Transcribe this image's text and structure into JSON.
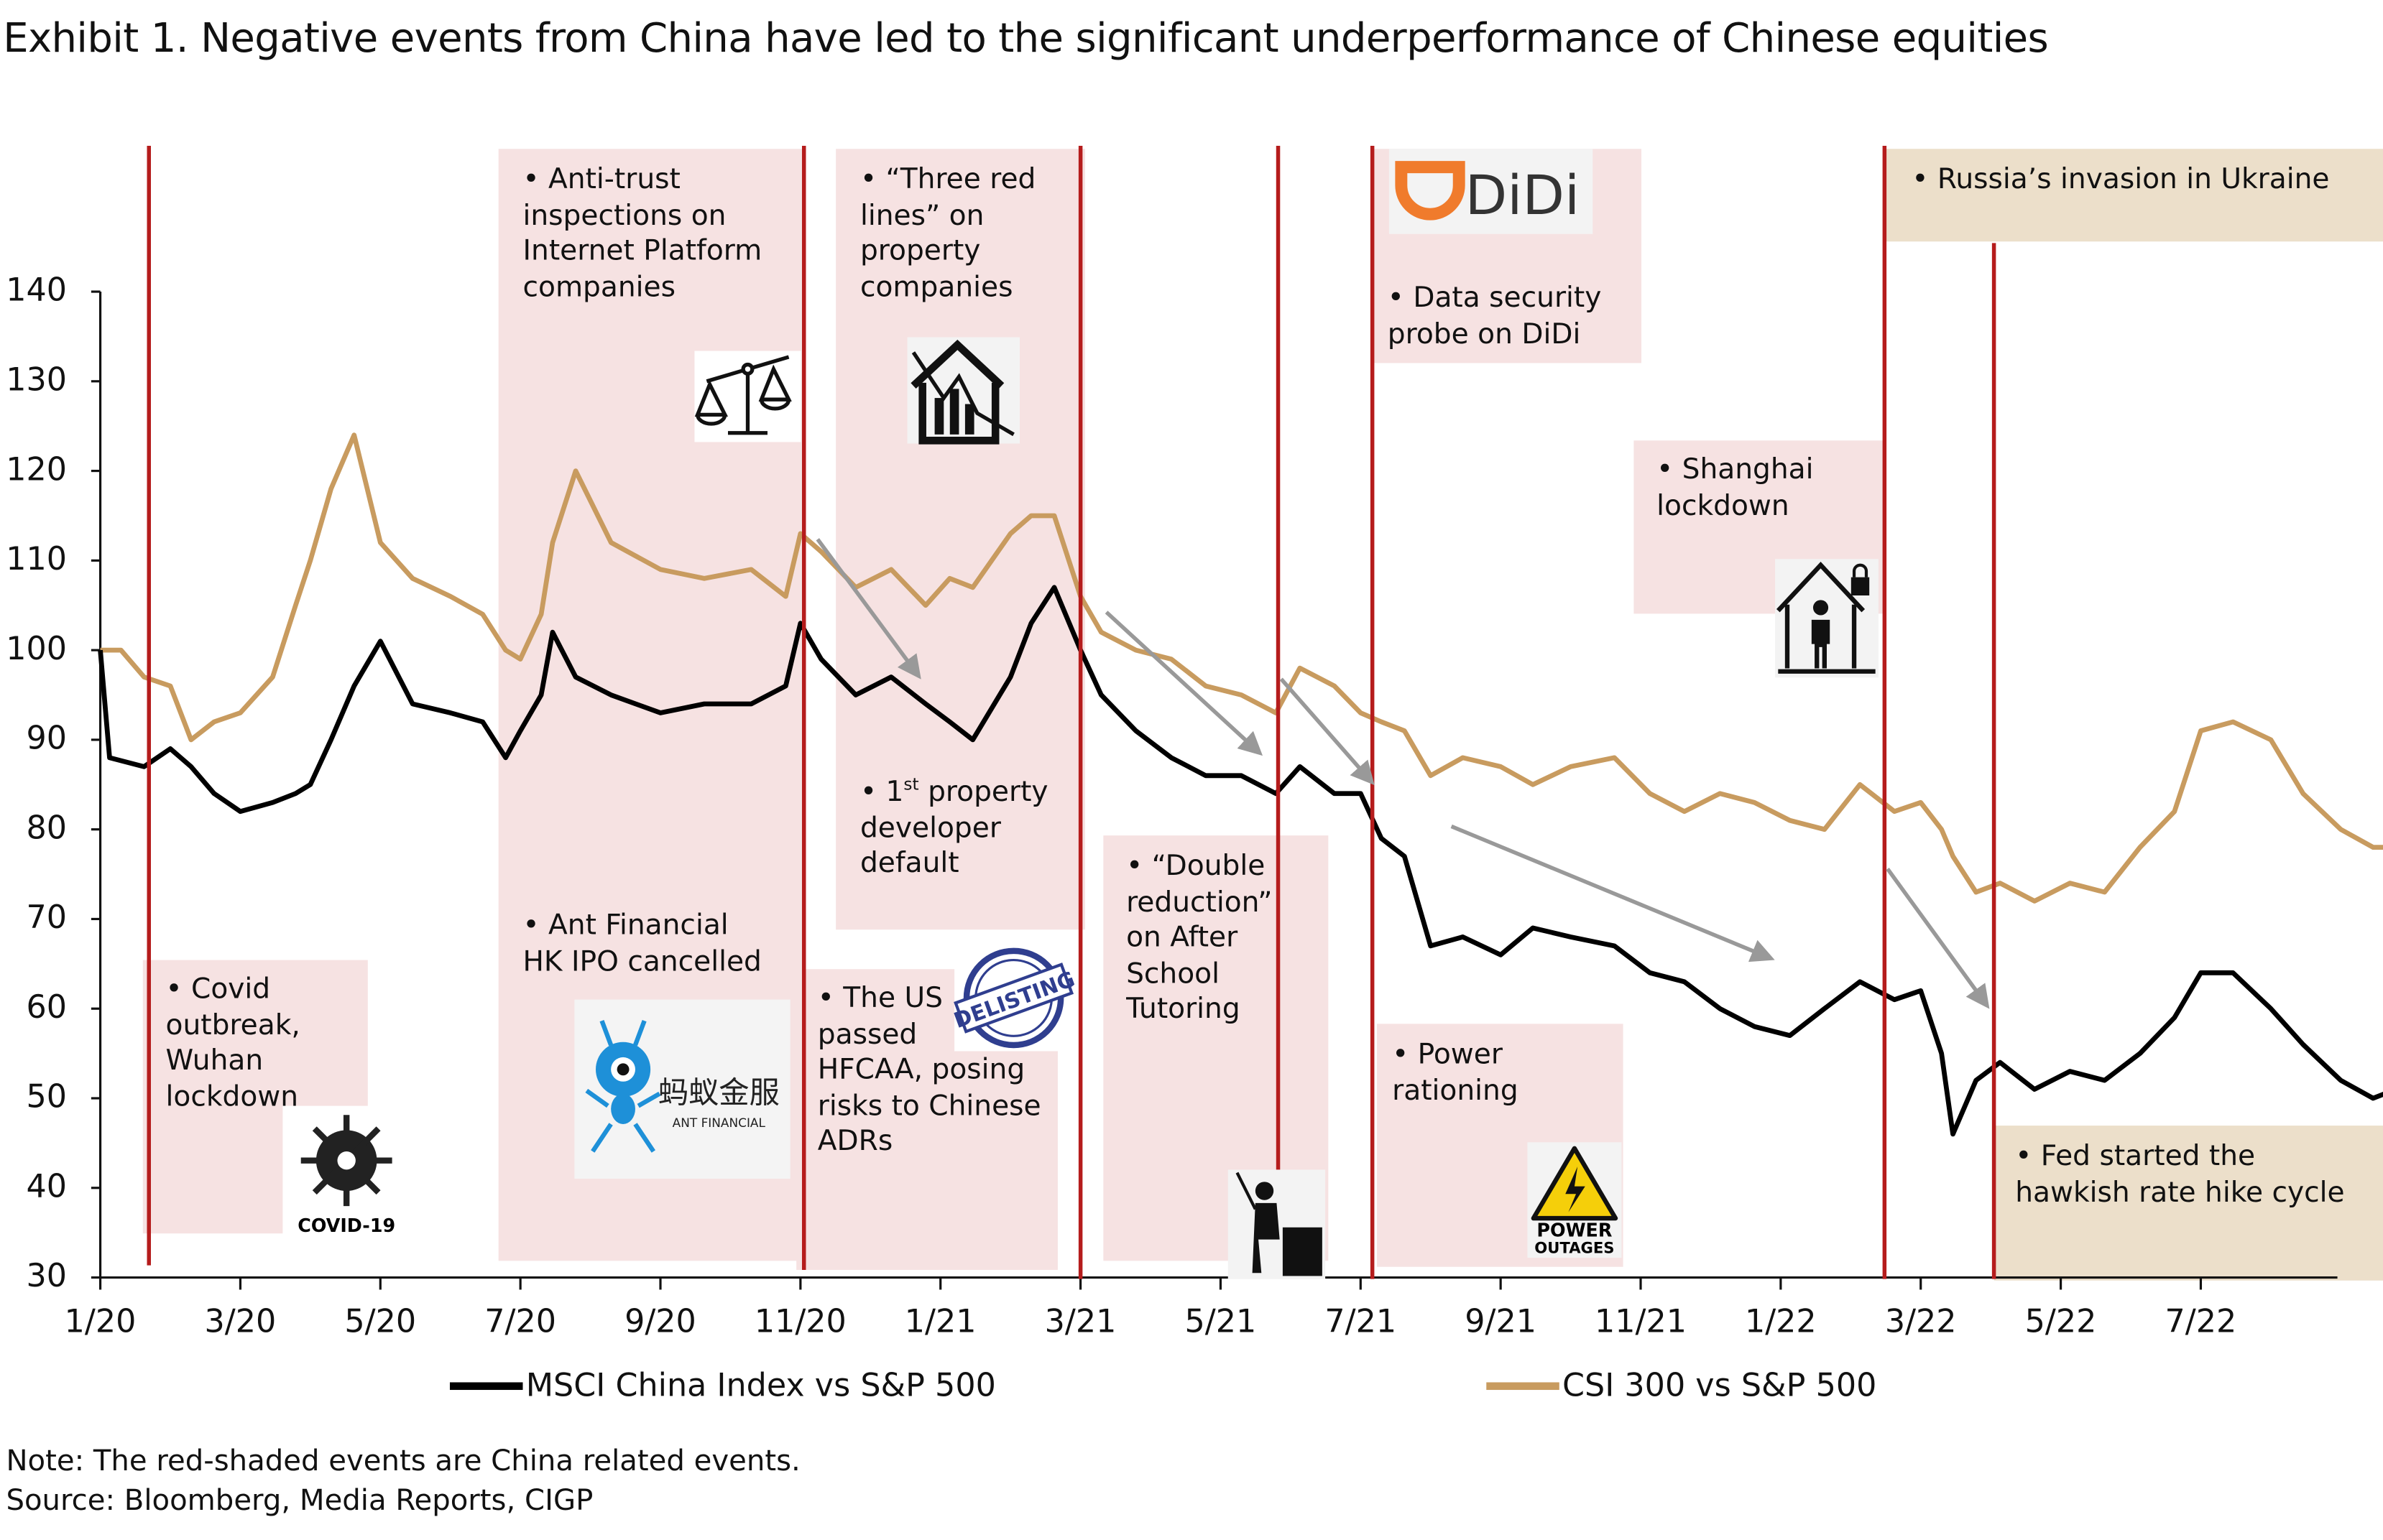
{
  "title": "Exhibit 1. Negative events from China have led to the significant underperformance of Chinese equities",
  "note": "Note: The red-shaded events are China related events.",
  "source": "Source: Bloomberg, Media Reports, CIGP",
  "colors": {
    "msci": "#000000",
    "csi": "#c89b5f",
    "event_line": "#b51c1c",
    "china_event_shade": "#f6e2e2",
    "global_event_shade": "#ecdfca",
    "arrow": "#999999"
  },
  "events": [
    {
      "text": "• Covid\noutbreak,\nWuhan\nlockdown",
      "icon": "covid-virus-icon",
      "icon_label": "COVID-19",
      "type": "china",
      "date": "2020-01-23"
    },
    {
      "text": "• Anti-trust\ninspections on\nInternet Platform\ncompanies",
      "icon": "scales-of-justice-icon",
      "type": "china",
      "date": "2020-11-03"
    },
    {
      "text": "• Ant Financial\nHK IPO cancelled",
      "icon": "ant-financial-logo",
      "icon_label": "蚂蚁金服\nANT FINANCIAL",
      "type": "china"
    },
    {
      "text": "• “Three red\nlines” on\nproperty\ncompanies",
      "icon": "house-falling-chart-icon",
      "type": "china",
      "date": "2021-03-01"
    },
    {
      "text_pre": "• 1",
      "text_sup": "st",
      "text_post": " property\ndeveloper\ndefault",
      "type": "china"
    },
    {
      "text": "• The US\npassed\nHFCAA, posing\nrisks to Chinese\nADRs",
      "icon": "delisting-stamp-icon",
      "icon_label": "DELISTING",
      "type": "china"
    },
    {
      "text": "• “Double\nreduction”\non After\nSchool\nTutoring",
      "icon": "teacher-icon",
      "type": "china",
      "date": "2021-05-25"
    },
    {
      "text": "• Data security\nprobe on DiDi",
      "icon": "didi-logo",
      "icon_label": "DiDi",
      "type": "china",
      "date": "2021-07-05"
    },
    {
      "text": "• Power\nrationing",
      "icon": "power-outage-sign-icon",
      "icon_label": "POWER\nOUTAGES",
      "type": "china"
    },
    {
      "text": "• Shanghai\nlockdown",
      "icon": "home-lockdown-icon",
      "type": "china"
    },
    {
      "text": "• Russia’s invasion in Ukraine",
      "type": "global",
      "date": "2022-02-15"
    },
    {
      "text": "• Fed started the\nhawkish rate hike cycle",
      "type": "global",
      "date": "2022-04-02"
    }
  ],
  "chart_data": {
    "type": "line",
    "title": "Exhibit 1. Negative events from China have led to the significant underperformance of Chinese equities",
    "xlabel": "",
    "ylabel": "",
    "ylim": [
      30,
      140
    ],
    "yticks": [
      140,
      130,
      120,
      110,
      100,
      90,
      80,
      70,
      60,
      50,
      40,
      30
    ],
    "xticks": [
      "1/20",
      "3/20",
      "5/20",
      "7/20",
      "9/20",
      "11/20",
      "1/21",
      "3/21",
      "5/21",
      "7/21",
      "9/21",
      "11/21",
      "1/22",
      "3/22",
      "5/22",
      "7/22"
    ],
    "xlim": [
      "2020-01-01",
      "2022-09-30"
    ],
    "grid": false,
    "legend": "bottom",
    "series": [
      {
        "name": "MSCI China Index vs S&P 500",
        "color": "#000000",
        "x": [
          "2020-01-01",
          "2020-01-05",
          "2020-01-20",
          "2020-02-01",
          "2020-02-10",
          "2020-02-20",
          "2020-03-01",
          "2020-03-15",
          "2020-03-25",
          "2020-04-01",
          "2020-04-10",
          "2020-04-20",
          "2020-05-01",
          "2020-05-15",
          "2020-06-01",
          "2020-06-15",
          "2020-06-25",
          "2020-07-01",
          "2020-07-10",
          "2020-07-15",
          "2020-07-25",
          "2020-08-10",
          "2020-09-01",
          "2020-09-20",
          "2020-10-10",
          "2020-10-25",
          "2020-11-01",
          "2020-11-10",
          "2020-11-25",
          "2020-12-10",
          "2020-12-25",
          "2021-01-05",
          "2021-01-15",
          "2021-02-01",
          "2021-02-10",
          "2021-02-20",
          "2021-03-01",
          "2021-03-10",
          "2021-03-25",
          "2021-04-10",
          "2021-04-25",
          "2021-05-10",
          "2021-05-25",
          "2021-06-05",
          "2021-06-20",
          "2021-07-01",
          "2021-07-10",
          "2021-07-20",
          "2021-08-01",
          "2021-08-15",
          "2021-09-01",
          "2021-09-15",
          "2021-10-01",
          "2021-10-20",
          "2021-11-05",
          "2021-11-20",
          "2021-12-05",
          "2021-12-20",
          "2022-01-05",
          "2022-01-20",
          "2022-02-05",
          "2022-02-20",
          "2022-03-01",
          "2022-03-10",
          "2022-03-15",
          "2022-03-25",
          "2022-04-05",
          "2022-04-20",
          "2022-05-05",
          "2022-05-20",
          "2022-06-05",
          "2022-06-20",
          "2022-07-01",
          "2022-07-15",
          "2022-08-01",
          "2022-08-15",
          "2022-09-01",
          "2022-09-15",
          "2022-09-25"
        ],
        "values": [
          100,
          88,
          87,
          89,
          87,
          84,
          82,
          83,
          84,
          85,
          90,
          96,
          101,
          94,
          93,
          92,
          88,
          91,
          95,
          102,
          97,
          95,
          93,
          94,
          94,
          96,
          103,
          99,
          95,
          97,
          94,
          92,
          90,
          97,
          103,
          107,
          100,
          95,
          91,
          88,
          86,
          86,
          84,
          87,
          84,
          84,
          79,
          77,
          67,
          68,
          66,
          69,
          68,
          67,
          64,
          63,
          60,
          58,
          57,
          60,
          63,
          61,
          62,
          55,
          46,
          52,
          54,
          51,
          53,
          52,
          55,
          59,
          64,
          64,
          60,
          56,
          52,
          50,
          51
        ]
      },
      {
        "name": "CSI 300 vs S&P 500",
        "color": "#c89b5f",
        "x": [
          "2020-01-01",
          "2020-01-10",
          "2020-01-20",
          "2020-02-01",
          "2020-02-10",
          "2020-02-20",
          "2020-03-01",
          "2020-03-15",
          "2020-03-25",
          "2020-04-01",
          "2020-04-10",
          "2020-04-20",
          "2020-05-01",
          "2020-05-15",
          "2020-06-01",
          "2020-06-15",
          "2020-06-25",
          "2020-07-01",
          "2020-07-10",
          "2020-07-15",
          "2020-07-25",
          "2020-08-10",
          "2020-09-01",
          "2020-09-20",
          "2020-10-10",
          "2020-10-25",
          "2020-11-01",
          "2020-11-10",
          "2020-11-25",
          "2020-12-10",
          "2020-12-25",
          "2021-01-05",
          "2021-01-15",
          "2021-02-01",
          "2021-02-10",
          "2021-02-20",
          "2021-03-01",
          "2021-03-10",
          "2021-03-25",
          "2021-04-10",
          "2021-04-25",
          "2021-05-10",
          "2021-05-25",
          "2021-06-05",
          "2021-06-20",
          "2021-07-01",
          "2021-07-10",
          "2021-07-20",
          "2021-08-01",
          "2021-08-15",
          "2021-09-01",
          "2021-09-15",
          "2021-10-01",
          "2021-10-20",
          "2021-11-05",
          "2021-11-20",
          "2021-12-05",
          "2021-12-20",
          "2022-01-05",
          "2022-01-20",
          "2022-02-05",
          "2022-02-20",
          "2022-03-01",
          "2022-03-10",
          "2022-03-15",
          "2022-03-25",
          "2022-04-05",
          "2022-04-20",
          "2022-05-05",
          "2022-05-20",
          "2022-06-05",
          "2022-06-20",
          "2022-07-01",
          "2022-07-15",
          "2022-08-01",
          "2022-08-15",
          "2022-09-01",
          "2022-09-15",
          "2022-09-25"
        ],
        "values": [
          100,
          100,
          97,
          96,
          90,
          92,
          93,
          97,
          105,
          110,
          118,
          124,
          112,
          108,
          106,
          104,
          100,
          99,
          104,
          112,
          120,
          112,
          109,
          108,
          109,
          106,
          113,
          111,
          107,
          109,
          105,
          108,
          107,
          113,
          115,
          115,
          106,
          102,
          100,
          99,
          96,
          95,
          93,
          98,
          96,
          93,
          92,
          91,
          86,
          88,
          87,
          85,
          87,
          88,
          84,
          82,
          84,
          83,
          81,
          80,
          85,
          82,
          83,
          80,
          77,
          73,
          74,
          72,
          74,
          73,
          78,
          82,
          91,
          92,
          90,
          84,
          80,
          78,
          78
        ]
      }
    ]
  }
}
